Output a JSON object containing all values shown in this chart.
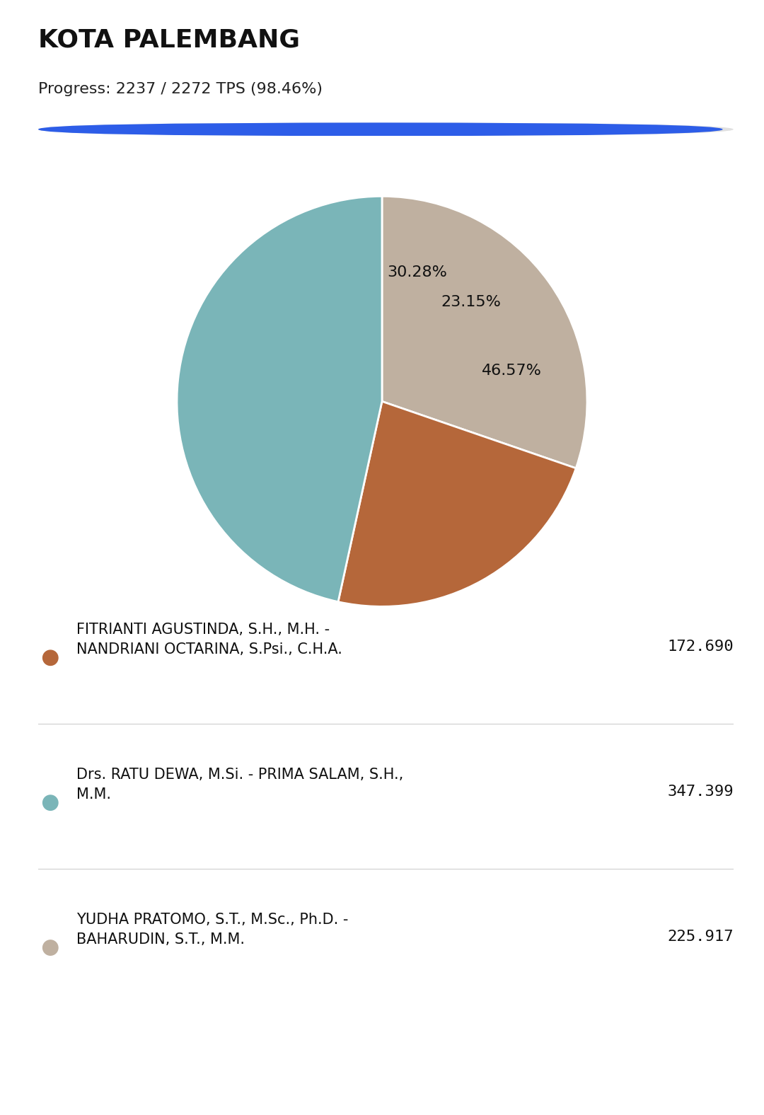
{
  "title": "KOTA PALEMBANG",
  "progress_text": "Progress: 2237 / 2272 TPS (98.46%)",
  "progress_value": 0.9846,
  "background_color": "#ffffff",
  "pie_slices": [
    {
      "label": "FITRIANTI AGUSTINDA, S.H., M.H. -\nNANDRIANI OCTARINA, S.Psi., C.H.A.",
      "value": 172690,
      "pct": 23.15,
      "color": "#b5673a"
    },
    {
      "label": "Drs. RATU DEWA, M.Si. - PRIMA SALAM, S.H.,\nM.M.",
      "value": 347399,
      "pct": 46.57,
      "color": "#7ab5b8"
    },
    {
      "label": "YUDHA PRATOMO, S.T., M.Sc., Ph.D. -\nBAHARUDIN, S.T., M.M.",
      "value": 225917,
      "pct": 30.28,
      "color": "#bfb0a0"
    }
  ],
  "pie_order": [
    2,
    0,
    1
  ],
  "progress_bar_color": "#2d5de8",
  "progress_bar_bg": "#e0e0e0",
  "title_fontsize": 26,
  "progress_fontsize": 16,
  "legend_name_fontsize": 15,
  "legend_value_fontsize": 16,
  "pct_fontsize": 16,
  "start_angle": 90
}
